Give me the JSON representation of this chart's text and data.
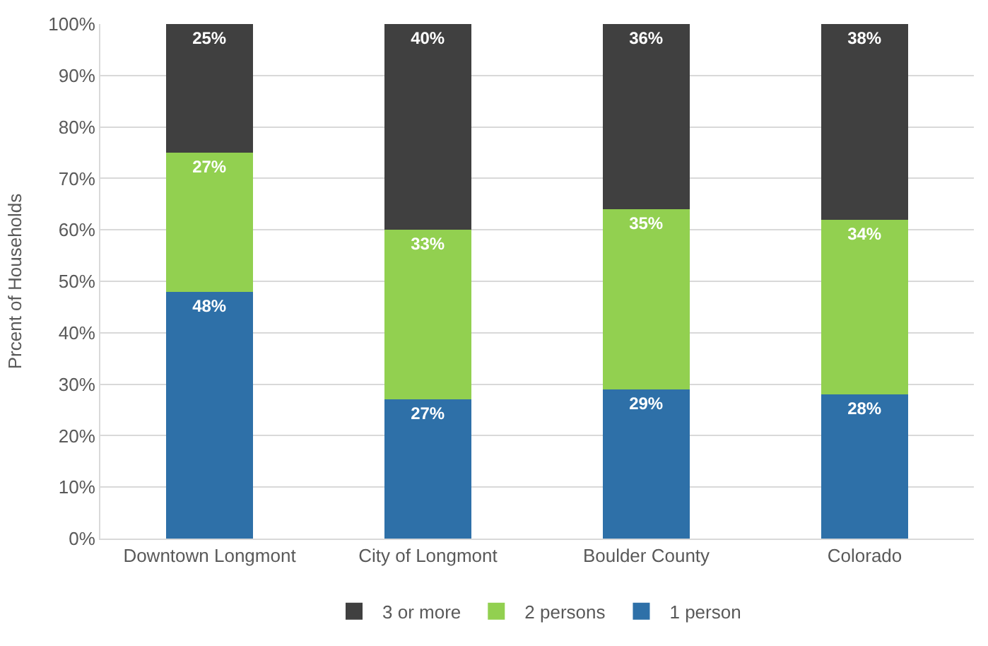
{
  "chart_data": {
    "type": "bar",
    "stacked": true,
    "ylabel": "Prcent of Households",
    "categories": [
      "Downtown Longmont",
      "City of Longmont",
      "Boulder County",
      "Colorado"
    ],
    "series": [
      {
        "name": "1 person",
        "color": "#2e70a8",
        "values": [
          48,
          27,
          29,
          28
        ],
        "value_labels": [
          "48%",
          "27%",
          "29%",
          "28%"
        ]
      },
      {
        "name": "2 persons",
        "color": "#92d050",
        "values": [
          27,
          33,
          35,
          34
        ],
        "value_labels": [
          "27%",
          "33%",
          "35%",
          "34%"
        ]
      },
      {
        "name": "3 or more",
        "color": "#404040",
        "values": [
          25,
          40,
          36,
          38
        ],
        "value_labels": [
          "25%",
          "40%",
          "36%",
          "38%"
        ]
      }
    ],
    "ylim": [
      0,
      100
    ],
    "yticks": [
      {
        "value": 0,
        "label": "0%"
      },
      {
        "value": 10,
        "label": "10%"
      },
      {
        "value": 20,
        "label": "20%"
      },
      {
        "value": 30,
        "label": "30%"
      },
      {
        "value": 40,
        "label": "40%"
      },
      {
        "value": 50,
        "label": "50%"
      },
      {
        "value": 60,
        "label": "60%"
      },
      {
        "value": 70,
        "label": "70%"
      },
      {
        "value": 80,
        "label": "80%"
      },
      {
        "value": 90,
        "label": "90%"
      },
      {
        "value": 100,
        "label": "100%"
      }
    ],
    "grid": "y",
    "legend": "bottom"
  }
}
